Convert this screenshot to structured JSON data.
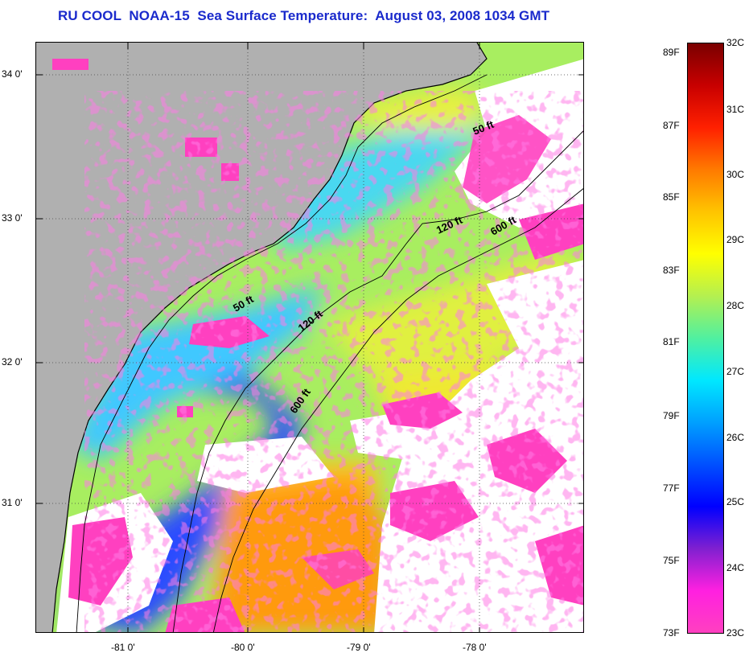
{
  "title": "RU COOL  NOAA-15  Sea Surface Temperature:  August 03, 2008 1034 GMT",
  "map": {
    "lat_labels": [
      "34 0'",
      "33 0'",
      "32 0'",
      "31 0'"
    ],
    "lon_labels": [
      "-81 0'",
      "-80 0'",
      "-79 0'",
      "-78 0'"
    ],
    "isobaths": [
      "50 ft",
      "120 ft",
      "600 ft",
      "50 ft",
      "120 ft",
      "600 ft"
    ],
    "colors": {
      "land": "#b0b0b0",
      "cloud_or_nodata": "#ffffff",
      "cool_water": "#ff33cc"
    }
  },
  "colorbar": {
    "fahrenheit": [
      "89F",
      "87F",
      "85F",
      "83F",
      "81F",
      "79F",
      "77F",
      "75F",
      "73F"
    ],
    "celsius": [
      "32C",
      "31C",
      "30C",
      "29C",
      "28C",
      "27C",
      "26C",
      "25C",
      "24C",
      "23C"
    ],
    "gradient": [
      "#7a0000",
      "#c80000",
      "#ff2000",
      "#ff7a00",
      "#ffc400",
      "#ffff00",
      "#b4f050",
      "#50f0a0",
      "#00e8ff",
      "#00a0ff",
      "#0050ff",
      "#0000ff",
      "#8020d0",
      "#ff20e0",
      "#ff40c0"
    ]
  }
}
